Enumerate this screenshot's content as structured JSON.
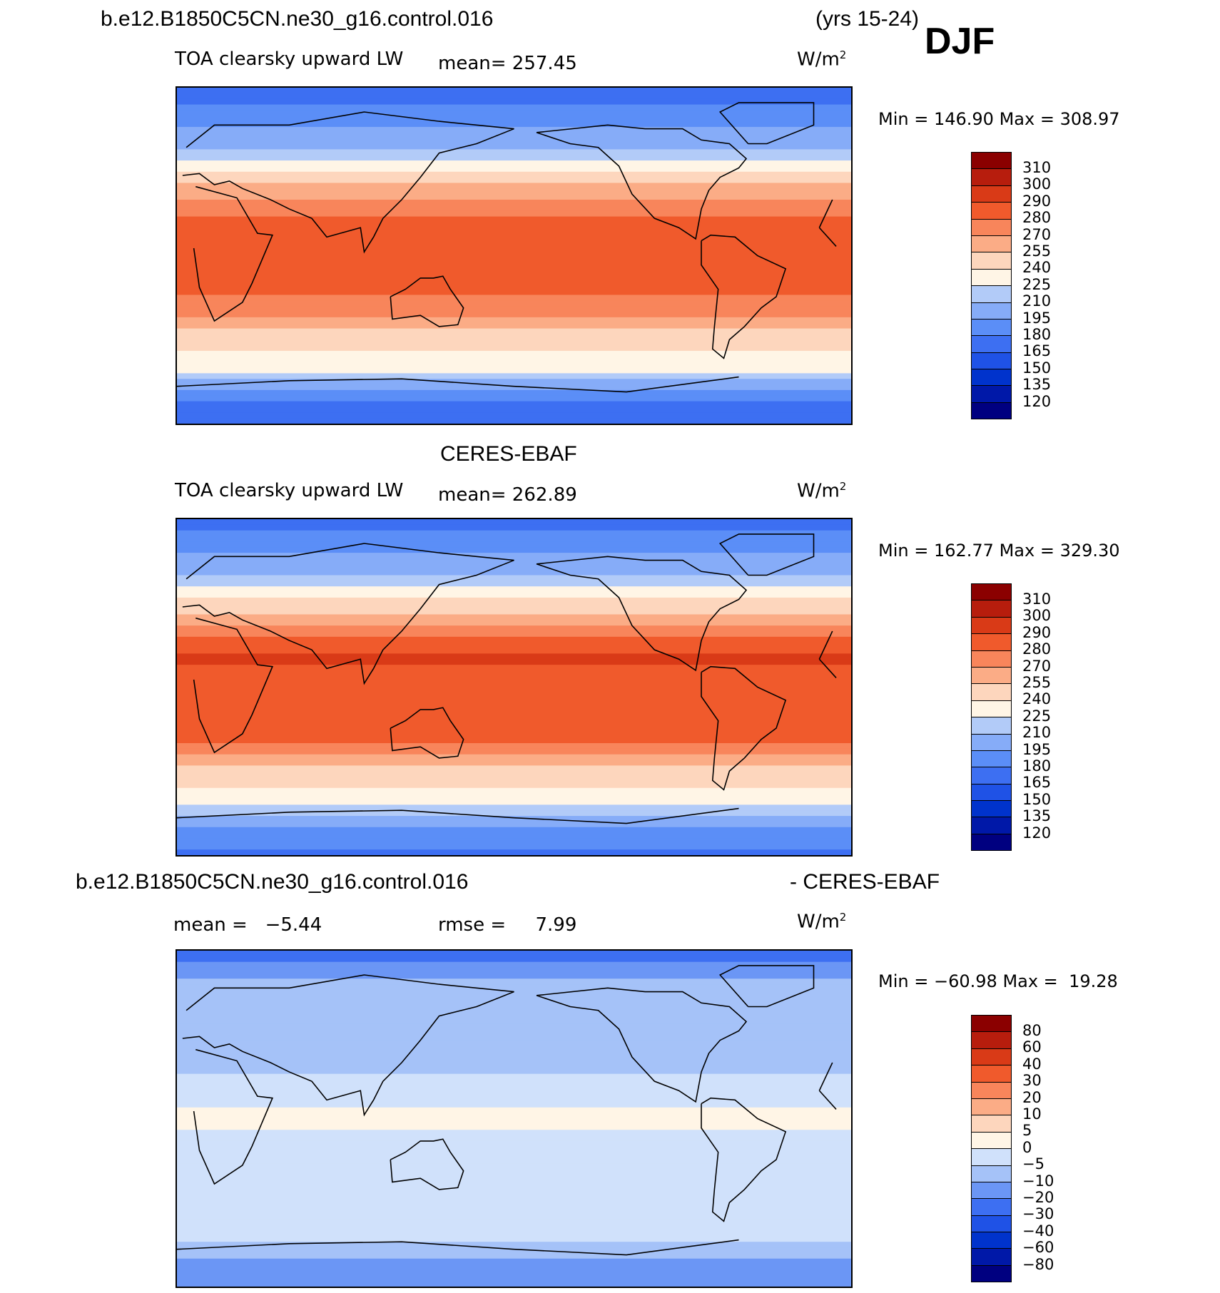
{
  "figure": {
    "case_name": "b.e12.B1850C5CN.ne30_g16.control.016",
    "years": "(yrs 15-24)",
    "season": "DJF",
    "obs_name": "CERES-EBAF",
    "diff_title_left": "b.e12.B1850C5CN.ne30_g16.control.016",
    "diff_title_right": "- CERES-EBAF"
  },
  "colors": {
    "abs_scale": [
      "#000080",
      "#0018a8",
      "#0033cc",
      "#1f52e6",
      "#3d6ff2",
      "#5b8ef7",
      "#86acf8",
      "#b2cbf8",
      "#dbe8fb",
      "#fff5e6",
      "#fdd6bd",
      "#fbac86",
      "#f8855b",
      "#f05a2c",
      "#d93a17",
      "#b71d0d",
      "#8b0000"
    ],
    "diff_scale": [
      "#000080",
      "#0018a8",
      "#0033cc",
      "#1f52e6",
      "#3d6ff2",
      "#6b96f5",
      "#a5c2f8",
      "#d0e1fb",
      "#fff5e6",
      "#fdd6bd",
      "#fbac86",
      "#f8855b",
      "#f05a2c",
      "#d93a17",
      "#b71d0d",
      "#8b0000"
    ]
  },
  "chart_data": [
    {
      "type": "heatmap",
      "panel": "model",
      "title": "TOA clearsky upward LW",
      "mean_label": "mean=",
      "mean": "257.45",
      "units": "W/m",
      "units_sup": "2",
      "min_label": "Min =",
      "min": "146.90",
      "max_label": "Max =",
      "max": "308.97",
      "colorbar_levels": [
        "310",
        "300",
        "290",
        "280",
        "270",
        "255",
        "240",
        "225",
        "210",
        "195",
        "180",
        "165",
        "150",
        "135",
        "120"
      ],
      "zonal_profile": {
        "lat": [
          90,
          75,
          60,
          45,
          30,
          15,
          0,
          -15,
          -30,
          -45,
          -60,
          -75,
          -90
        ],
        "value": [
          170,
          185,
          205,
          240,
          270,
          285,
          280,
          283,
          275,
          245,
          230,
          185,
          165
        ]
      }
    },
    {
      "type": "heatmap",
      "panel": "obs",
      "title": "TOA clearsky upward LW",
      "mean_label": "mean=",
      "mean": "262.89",
      "units": "W/m",
      "units_sup": "2",
      "min_label": "Min =",
      "min": "162.77",
      "max_label": "Max =",
      "max": "329.30",
      "colorbar_levels": [
        "310",
        "300",
        "290",
        "280",
        "270",
        "255",
        "240",
        "225",
        "210",
        "195",
        "180",
        "165",
        "150",
        "135",
        "120"
      ],
      "zonal_profile": {
        "lat": [
          90,
          75,
          60,
          45,
          30,
          15,
          0,
          -15,
          -30,
          -45,
          -60,
          -75,
          -90
        ],
        "value": [
          175,
          190,
          212,
          245,
          275,
          292,
          285,
          290,
          280,
          250,
          232,
          195,
          175
        ]
      }
    },
    {
      "type": "heatmap",
      "panel": "difference",
      "mean_label": "mean =",
      "mean": "−5.44",
      "rmse_label": "rmse =",
      "rmse": "7.99",
      "units": "W/m",
      "units_sup": "2",
      "min_label": "Min =",
      "min": "−60.98",
      "max_label": "Max =",
      "max": "19.28",
      "colorbar_levels": [
        "80",
        "60",
        "40",
        "30",
        "20",
        "10",
        "5",
        "0",
        "−5",
        "−10",
        "−20",
        "−30",
        "−40",
        "−60",
        "−80"
      ],
      "zonal_profile": {
        "lat": [
          90,
          75,
          60,
          45,
          30,
          15,
          0,
          -15,
          -30,
          -45,
          -60,
          -75,
          -90
        ],
        "value": [
          -25,
          -10,
          -8,
          -6,
          -6,
          -4,
          2,
          -3,
          -5,
          -4,
          -2,
          -10,
          -15
        ]
      }
    }
  ]
}
